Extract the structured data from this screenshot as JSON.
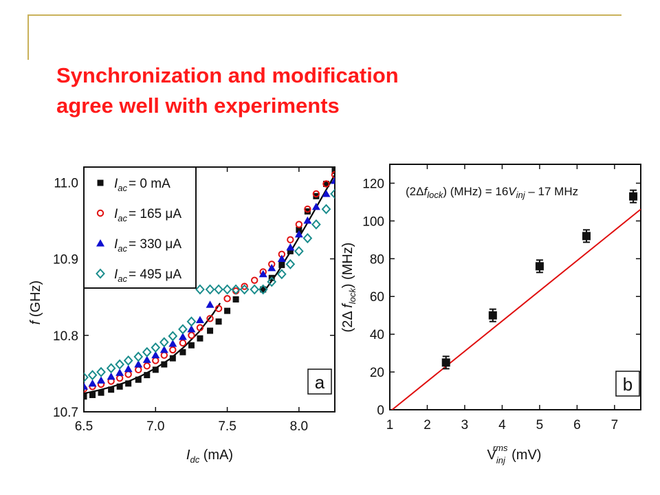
{
  "slide": {
    "title_line1": "Synchronization and modification",
    "title_line2": "agree well with experiments"
  },
  "chart_data": [
    {
      "type": "scatter",
      "panel_label": "a",
      "xlabel": {
        "symbol": "I",
        "subscript": "dc",
        "unit": " (mA)"
      },
      "ylabel": {
        "symbol": "f",
        "unit": " (GHz)"
      },
      "xlim": [
        6.5,
        8.25
      ],
      "ylim": [
        10.7,
        11.02
      ],
      "xticks": [
        "6.5",
        "7.0",
        "7.5",
        "8.0"
      ],
      "yticks": [
        "10.7",
        "10.8",
        "10.9",
        "11.0"
      ],
      "legend_position": "top-left",
      "series": [
        {
          "name": "I_ac = 0 mA",
          "legend": {
            "symbol": "I",
            "subscript": "ac",
            "text": "= 0 mA"
          },
          "marker": "square",
          "color": "#111111",
          "x": [
            6.5,
            6.56,
            6.62,
            6.69,
            6.75,
            6.81,
            6.88,
            6.94,
            7.0,
            7.06,
            7.12,
            7.19,
            7.25,
            7.31,
            7.38,
            7.44,
            7.5,
            7.56,
            7.75,
            7.81,
            7.88,
            7.94,
            8.0,
            8.06,
            8.12,
            8.19,
            8.25
          ],
          "y": [
            10.72,
            10.722,
            10.725,
            10.729,
            10.733,
            10.737,
            10.742,
            10.748,
            10.755,
            10.762,
            10.77,
            10.778,
            10.787,
            10.796,
            10.806,
            10.818,
            10.832,
            10.847,
            10.86,
            10.875,
            10.892,
            10.91,
            10.938,
            10.962,
            10.982,
            10.998,
            11.015
          ]
        },
        {
          "name": "I_ac = 165 μA",
          "legend": {
            "symbol": "I",
            "subscript": "ac",
            "text": "= 165 μA"
          },
          "marker": "circle-open",
          "color": "#e01010",
          "x": [
            6.5,
            6.56,
            6.62,
            6.69,
            6.75,
            6.81,
            6.88,
            6.94,
            7.0,
            7.06,
            7.12,
            7.19,
            7.25,
            7.31,
            7.38,
            7.44,
            7.5,
            7.56,
            7.62,
            7.69,
            7.75,
            7.81,
            7.88,
            7.94,
            8.0,
            8.06,
            8.12,
            8.19,
            8.25
          ],
          "y": [
            10.73,
            10.733,
            10.736,
            10.74,
            10.744,
            10.749,
            10.755,
            10.76,
            10.767,
            10.774,
            10.781,
            10.79,
            10.8,
            10.81,
            10.822,
            10.835,
            10.848,
            10.858,
            10.864,
            10.872,
            10.883,
            10.893,
            10.906,
            10.925,
            10.945,
            10.965,
            10.985,
            10.998,
            11.01
          ]
        },
        {
          "name": "I_ac = 330 μA",
          "legend": {
            "symbol": "I",
            "subscript": "ac",
            "text": "= 330 μA"
          },
          "marker": "triangle",
          "color": "#1010d0",
          "x": [
            6.5,
            6.56,
            6.62,
            6.69,
            6.75,
            6.81,
            6.88,
            6.94,
            7.0,
            7.06,
            7.12,
            7.19,
            7.25,
            7.31,
            7.38,
            7.75,
            7.81,
            7.88,
            7.94,
            8.0,
            8.06,
            8.12,
            8.19,
            8.25
          ],
          "y": [
            10.733,
            10.737,
            10.741,
            10.746,
            10.751,
            10.756,
            10.762,
            10.768,
            10.774,
            10.781,
            10.789,
            10.798,
            10.808,
            10.82,
            10.84,
            10.88,
            10.888,
            10.9,
            10.915,
            10.932,
            10.95,
            10.968,
            10.985,
            11.002
          ]
        },
        {
          "name": "I_ac = 495 μA",
          "legend": {
            "symbol": "I",
            "subscript": "ac",
            "text": "= 495 μA"
          },
          "marker": "diamond-open",
          "color": "#1a8c8c",
          "x": [
            6.5,
            6.56,
            6.62,
            6.69,
            6.75,
            6.81,
            6.88,
            6.94,
            7.0,
            7.06,
            7.12,
            7.19,
            7.25,
            7.31,
            7.38,
            7.44,
            7.5,
            7.56,
            7.62,
            7.69,
            7.75,
            7.81,
            7.88,
            7.94,
            8.0,
            8.06,
            8.12,
            8.19,
            8.25
          ],
          "y": [
            10.745,
            10.748,
            10.752,
            10.757,
            10.762,
            10.767,
            10.772,
            10.778,
            10.784,
            10.791,
            10.799,
            10.808,
            10.818,
            10.86,
            10.86,
            10.86,
            10.86,
            10.86,
            10.86,
            10.86,
            10.86,
            10.87,
            10.88,
            10.893,
            10.91,
            10.927,
            10.945,
            10.965,
            10.985
          ]
        }
      ],
      "fit_curves": [
        {
          "color": "#000000",
          "x": [
            6.5,
            6.6,
            6.7,
            6.8,
            6.9,
            7.0,
            7.1,
            7.2,
            7.3,
            7.4,
            7.45
          ],
          "y": [
            10.724,
            10.728,
            10.733,
            10.739,
            10.747,
            10.757,
            10.769,
            10.785,
            10.804,
            10.828,
            10.842
          ]
        },
        {
          "color": "#000000",
          "x": [
            7.76,
            7.85,
            7.95,
            8.05,
            8.15,
            8.25
          ],
          "y": [
            10.858,
            10.882,
            10.912,
            10.944,
            10.977,
            11.01
          ]
        }
      ]
    },
    {
      "type": "scatter",
      "panel_label": "b",
      "xlabel": {
        "symbol": "V",
        "subscript": "inj",
        "superscript": "rms",
        "unit": " (mV)"
      },
      "ylabel": {
        "prefix": "(2Δ ",
        "symbol": "f",
        "subscript": "lock",
        "suffix": ") (MHz)"
      },
      "annotation": {
        "prefix": "(2Δ",
        "symbol": "f",
        "subscript": "lock",
        "middle": ") (MHz) = 16",
        "symbol2": "V",
        "subscript2": "inj",
        "suffix": " – 17 MHz"
      },
      "xlim": [
        1,
        7.7
      ],
      "ylim": [
        0,
        130
      ],
      "xticks": [
        "1",
        "2",
        "3",
        "4",
        "5",
        "6",
        "7"
      ],
      "yticks": [
        "0",
        "20",
        "40",
        "60",
        "80",
        "100",
        "120"
      ],
      "series": [
        {
          "name": "data",
          "marker": "square-errorbar",
          "color": "#111111",
          "x": [
            2.5,
            3.75,
            5.0,
            6.25,
            7.5
          ],
          "y": [
            25,
            50,
            76,
            92,
            113
          ]
        }
      ],
      "fit_line": {
        "slope": 16,
        "intercept": -17,
        "color": "#e01010"
      }
    }
  ]
}
